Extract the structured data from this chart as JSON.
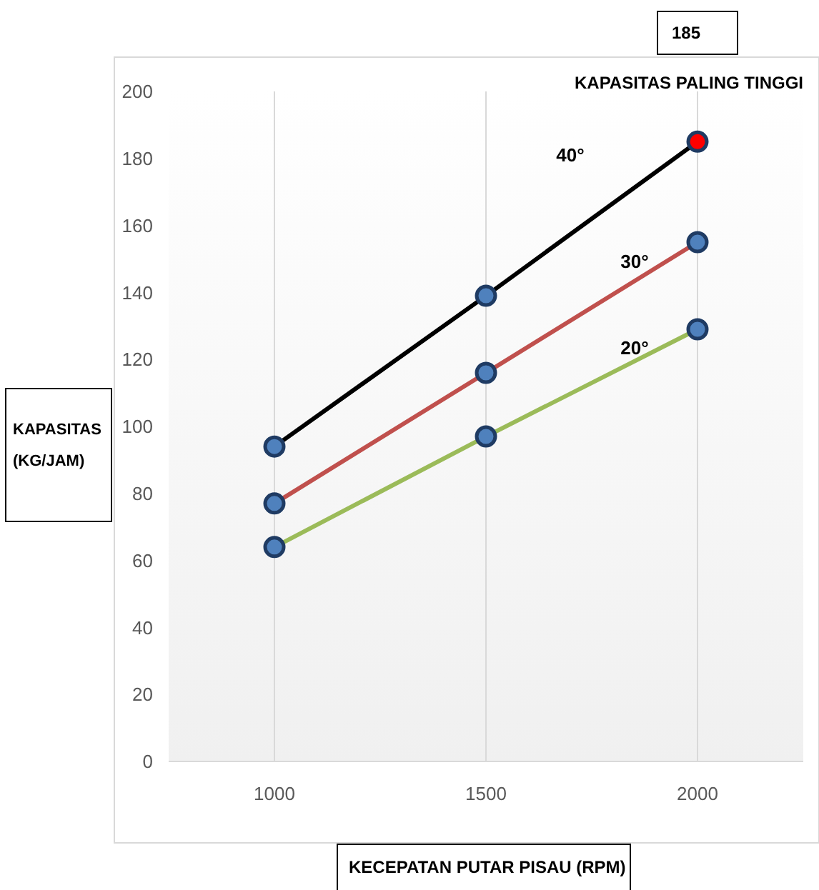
{
  "chart_data": {
    "type": "line",
    "xlabel": "KECEPATAN PUTAR PISAU (RPM)",
    "ylabel": "KAPASITAS\n(KG/JAM)",
    "categories": [
      "1000",
      "1500",
      "2000"
    ],
    "series": [
      {
        "name": "40°",
        "color": "#000000",
        "colors": [
          "#4f81bd",
          "#4f81bd",
          "#ff0000"
        ],
        "values": [
          94,
          139,
          185
        ]
      },
      {
        "name": "30°",
        "color": "#c0504d",
        "colors": [
          "#4f81bd",
          "#4f81bd",
          "#4f81bd"
        ],
        "values": [
          77,
          116,
          155
        ]
      },
      {
        "name": "20°",
        "color": "#9bbb59",
        "colors": [
          "#4f81bd",
          "#4f81bd",
          "#4f81bd"
        ],
        "values": [
          64,
          97,
          129
        ]
      }
    ],
    "ylim": [
      0,
      200
    ],
    "yticks": [
      0,
      20,
      40,
      60,
      80,
      100,
      120,
      140,
      160,
      180,
      200
    ],
    "grid": "x",
    "marker": "circle",
    "line_style": "solid",
    "annotations": [
      "185",
      "KAPASITAS PALING TINGGI"
    ]
  }
}
